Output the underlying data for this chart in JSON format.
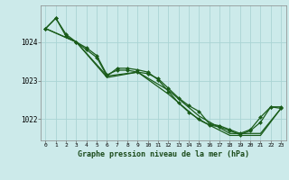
{
  "title": "Graphe pression niveau de la mer (hPa)",
  "background_color": "#cceaea",
  "grid_color": "#aad4d4",
  "line_color": "#1a5c1a",
  "marker_color": "#1a5c1a",
  "xlim": [
    -0.5,
    23.5
  ],
  "ylim": [
    1021.45,
    1024.95
  ],
  "yticks": [
    1022,
    1023,
    1024
  ],
  "xticks": [
    0,
    1,
    2,
    3,
    4,
    5,
    6,
    7,
    8,
    9,
    10,
    11,
    12,
    13,
    14,
    15,
    16,
    17,
    18,
    19,
    20,
    21,
    22,
    23
  ],
  "series": [
    {
      "x": [
        0,
        1,
        2,
        3,
        4,
        5,
        6,
        7,
        8,
        9,
        10,
        11,
        12,
        13,
        14,
        15,
        16,
        17,
        18,
        19,
        20,
        21,
        22,
        23
      ],
      "y": [
        1024.35,
        1024.62,
        1024.2,
        1024.0,
        1023.85,
        1023.65,
        1023.15,
        1023.27,
        1023.27,
        1023.22,
        1023.18,
        1023.05,
        1022.8,
        1022.55,
        1022.35,
        1022.2,
        1021.88,
        1021.83,
        1021.73,
        1021.63,
        1021.73,
        1022.05,
        1022.32,
        1022.28
      ],
      "marker": true
    },
    {
      "x": [
        0,
        1,
        2,
        3,
        4,
        5,
        6,
        7,
        8,
        9,
        10,
        11,
        12,
        13,
        14,
        15,
        16,
        17,
        18,
        19,
        20,
        21,
        22,
        23
      ],
      "y": [
        1024.35,
        1024.62,
        1024.15,
        1024.0,
        1023.8,
        1023.6,
        1023.12,
        1023.32,
        1023.32,
        1023.28,
        1023.22,
        1023.02,
        1022.72,
        1022.42,
        1022.18,
        1022.0,
        1021.85,
        1021.8,
        1021.7,
        1021.6,
        1021.7,
        1021.92,
        1022.32,
        1022.32
      ],
      "marker": true
    },
    {
      "x": [
        0,
        3,
        6,
        9,
        12,
        15,
        18,
        21,
        23
      ],
      "y": [
        1024.35,
        1024.0,
        1023.12,
        1023.22,
        1022.75,
        1022.08,
        1021.63,
        1021.63,
        1022.28
      ],
      "marker": false
    },
    {
      "x": [
        0,
        3,
        6,
        9,
        12,
        15,
        18,
        21,
        23
      ],
      "y": [
        1024.35,
        1024.0,
        1023.08,
        1023.22,
        1022.65,
        1021.98,
        1021.58,
        1021.58,
        1022.28
      ],
      "marker": false
    }
  ]
}
